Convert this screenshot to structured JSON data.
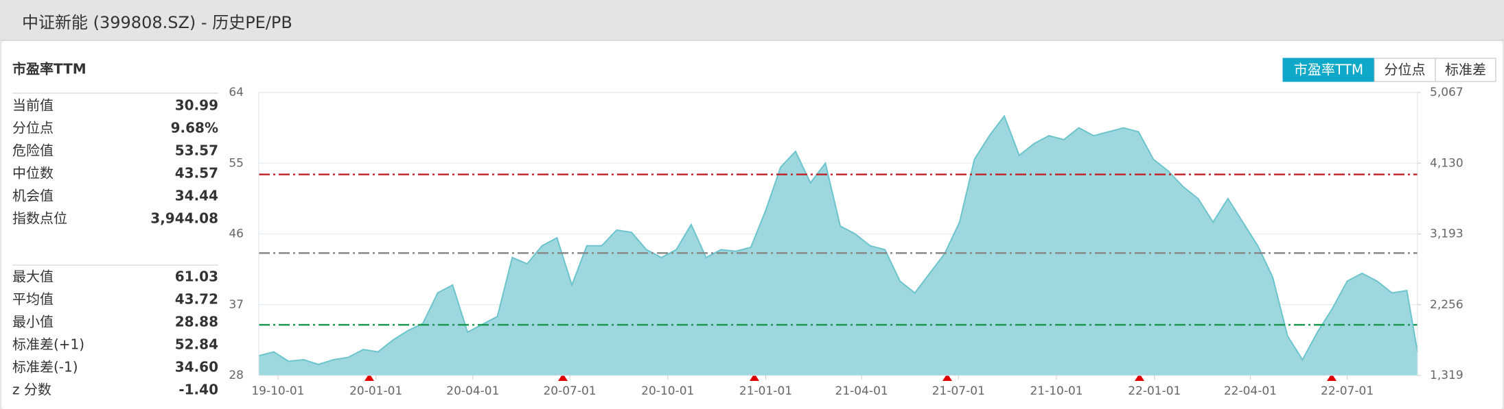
{
  "header": {
    "title": "中证新能 (399808.SZ) - 历史PE/PB"
  },
  "tabs": [
    {
      "label": "市盈率TTM",
      "active": true
    },
    {
      "label": "分位点",
      "active": false
    },
    {
      "label": "标准差",
      "active": false
    }
  ],
  "panel": {
    "title": "市盈率TTM",
    "group1": [
      [
        "当前值",
        "30.99"
      ],
      [
        "分位点",
        "9.68%"
      ],
      [
        "危险值",
        "53.57"
      ],
      [
        "中位数",
        "43.57"
      ],
      [
        "机会值",
        "34.44"
      ],
      [
        "指数点位",
        "3,944.08"
      ]
    ],
    "group2": [
      [
        "最大值",
        "61.03"
      ],
      [
        "平均值",
        "43.72"
      ],
      [
        "最小值",
        "28.88"
      ],
      [
        "标准差(+1)",
        "52.84"
      ],
      [
        "标准差(-1)",
        "34.60"
      ],
      [
        "z 分数",
        "-1.40"
      ]
    ]
  },
  "chart_data": {
    "type": "area",
    "x": [
      "19-09-13",
      "19-09-27",
      "19-10-11",
      "19-10-25",
      "19-11-08",
      "19-11-22",
      "19-12-06",
      "19-12-20",
      "20-01-03",
      "20-01-17",
      "20-01-31",
      "20-02-14",
      "20-02-28",
      "20-03-13",
      "20-03-27",
      "20-04-10",
      "20-04-24",
      "20-05-08",
      "20-05-22",
      "20-06-05",
      "20-06-19",
      "20-07-03",
      "20-07-17",
      "20-07-31",
      "20-08-14",
      "20-08-28",
      "20-09-11",
      "20-09-25",
      "20-10-09",
      "20-10-23",
      "20-11-06",
      "20-11-20",
      "20-12-04",
      "20-12-18",
      "21-01-01",
      "21-01-15",
      "21-01-29",
      "21-02-12",
      "21-02-26",
      "21-03-12",
      "21-03-26",
      "21-04-09",
      "21-04-23",
      "21-05-07",
      "21-05-21",
      "21-06-04",
      "21-06-18",
      "21-07-02",
      "21-07-16",
      "21-07-30",
      "21-08-13",
      "21-08-27",
      "21-09-10",
      "21-09-24",
      "21-10-08",
      "21-10-22",
      "21-11-05",
      "21-11-19",
      "21-12-03",
      "21-12-17",
      "21-12-31",
      "22-01-14",
      "22-01-28",
      "22-02-11",
      "22-02-25",
      "22-03-11",
      "22-03-25",
      "22-04-08",
      "22-04-22",
      "22-05-06",
      "22-05-20",
      "22-06-03",
      "22-06-17",
      "22-07-01",
      "22-07-15",
      "22-07-29",
      "22-08-12",
      "22-08-26",
      "22-09-05"
    ],
    "values": [
      30.5,
      31.0,
      29.8,
      30.0,
      29.4,
      30.0,
      30.3,
      31.3,
      31.0,
      32.5,
      33.7,
      34.6,
      38.5,
      39.5,
      33.5,
      34.5,
      35.5,
      43.0,
      42.2,
      44.5,
      45.5,
      39.5,
      44.5,
      44.5,
      46.5,
      46.2,
      44.0,
      43.0,
      44.0,
      47.2,
      43.0,
      44.0,
      43.8,
      44.3,
      49.0,
      54.5,
      56.5,
      52.5,
      55.0,
      47.0,
      46.0,
      44.5,
      44.0,
      40.0,
      38.5,
      41.0,
      43.5,
      47.5,
      55.5,
      58.5,
      61.0,
      56.0,
      57.5,
      58.5,
      58.0,
      59.5,
      58.5,
      59.0,
      59.5,
      59.0,
      55.5,
      54.0,
      52.0,
      50.5,
      47.5,
      50.5,
      47.5,
      44.5,
      40.5,
      33.0,
      30.0,
      33.5,
      36.5,
      40.0,
      41.0,
      40.0,
      38.5,
      38.8,
      30.99
    ],
    "color": "#9fd7de",
    "line_color": "#6cc4cd",
    "xlim": [
      "19-09-13",
      "22-09-05"
    ],
    "xticks": [
      "19-10-01",
      "20-01-01",
      "20-04-01",
      "20-07-01",
      "20-10-01",
      "21-01-01",
      "21-04-01",
      "21-07-01",
      "21-10-01",
      "22-01-01",
      "22-04-01",
      "22-07-01"
    ],
    "ylim": [
      28,
      64
    ],
    "yticks": [
      28,
      37,
      46,
      55,
      64
    ],
    "y2lim": [
      1319,
      5067
    ],
    "y2ticks": [
      {
        "value": 1319,
        "label": "1,319"
      },
      {
        "value": 2256,
        "label": "2,256"
      },
      {
        "value": 3193,
        "label": "3,193"
      },
      {
        "value": 4130,
        "label": "4,130"
      },
      {
        "value": 5067,
        "label": "5,067"
      }
    ],
    "ref_lines": [
      {
        "value": 53.57,
        "color": "#c0272d"
      },
      {
        "value": 43.57,
        "color": "#888888"
      },
      {
        "value": 34.44,
        "color": "#1a9850"
      }
    ],
    "grid": true
  }
}
